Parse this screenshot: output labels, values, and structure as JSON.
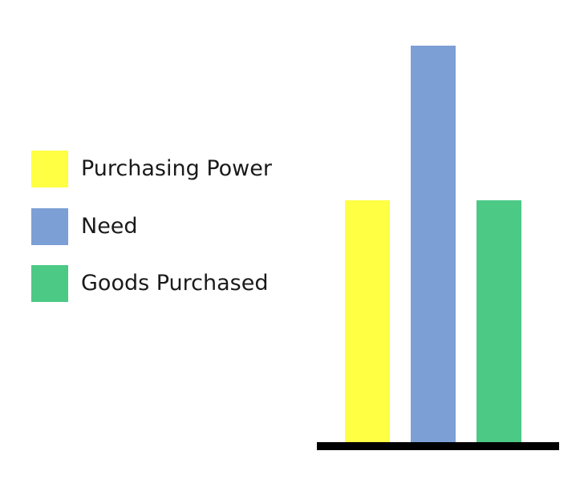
{
  "chart_data": {
    "type": "bar",
    "title": "",
    "xlabel": "",
    "ylabel": "",
    "ylim": [
      0,
      100
    ],
    "grid": false,
    "legend_position": "left",
    "series": [
      {
        "name": "Purchasing Power",
        "value": 61,
        "color": "#FFFF44"
      },
      {
        "name": "Need",
        "value": 100,
        "color": "#7C9FD5"
      },
      {
        "name": "Goods Purchased",
        "value": 61,
        "color": "#4CC985"
      }
    ]
  }
}
